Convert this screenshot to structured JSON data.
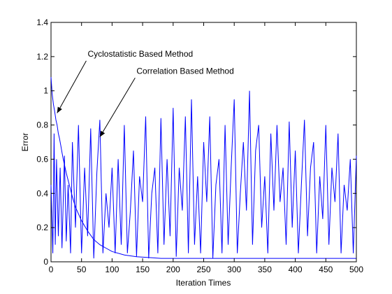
{
  "chart_data": {
    "type": "line",
    "title": "",
    "xlabel": "Iteration Times",
    "ylabel": "Error",
    "xlim": [
      0,
      500
    ],
    "ylim": [
      0,
      1.4
    ],
    "xticks": [
      0,
      50,
      100,
      150,
      200,
      250,
      300,
      350,
      400,
      450,
      500
    ],
    "yticks": [
      0,
      0.2,
      0.4,
      0.6,
      0.8,
      1,
      1.2,
      1.4
    ],
    "grid": false,
    "line_color": "#0000ff",
    "series": [
      {
        "x": [
          0,
          2,
          4,
          6,
          8,
          10,
          12,
          14,
          16,
          18,
          20,
          25,
          30,
          35,
          40,
          45,
          50,
          60,
          70,
          80,
          90,
          100,
          120,
          140,
          160,
          180,
          200,
          230,
          260,
          300,
          350,
          400,
          450,
          500
        ],
        "values": [
          1.08,
          0.98,
          0.92,
          0.88,
          0.83,
          0.8,
          0.75,
          0.72,
          0.68,
          0.64,
          0.6,
          0.52,
          0.45,
          0.38,
          0.32,
          0.28,
          0.24,
          0.18,
          0.13,
          0.1,
          0.08,
          0.06,
          0.04,
          0.03,
          0.025,
          0.02,
          0.02,
          0.02,
          0.02,
          0.02,
          0.02,
          0.02,
          0.02,
          0.02
        ]
      },
      {
        "x": [
          0,
          3,
          5,
          7,
          9,
          12,
          15,
          18,
          22,
          25,
          28,
          32,
          35,
          40,
          45,
          50,
          55,
          60,
          65,
          70,
          75,
          80,
          85,
          90,
          95,
          100,
          105,
          110,
          115,
          120,
          125,
          130,
          135,
          140,
          145,
          150,
          155,
          160,
          165,
          170,
          175,
          180,
          185,
          190,
          195,
          200,
          205,
          210,
          215,
          220,
          225,
          230,
          235,
          240,
          245,
          250,
          255,
          260,
          265,
          270,
          275,
          280,
          285,
          290,
          295,
          300,
          305,
          310,
          315,
          320,
          325,
          330,
          335,
          340,
          345,
          350,
          355,
          360,
          365,
          370,
          375,
          380,
          385,
          390,
          395,
          400,
          405,
          410,
          415,
          420,
          425,
          430,
          435,
          440,
          445,
          450,
          455,
          460,
          465,
          470,
          475,
          480,
          485,
          490,
          495,
          500
        ],
        "values": [
          0.45,
          0.05,
          0.75,
          0.1,
          0.6,
          0.15,
          0.55,
          0.08,
          0.62,
          0.12,
          0.45,
          0.05,
          0.7,
          0.2,
          0.8,
          0.05,
          0.55,
          0.15,
          0.78,
          0.02,
          0.52,
          0.83,
          0.05,
          0.4,
          0.2,
          0.55,
          0.05,
          0.6,
          0.1,
          0.8,
          0.05,
          0.3,
          0.65,
          0.03,
          0.5,
          0.35,
          0.85,
          0.02,
          0.4,
          0.55,
          0.05,
          0.84,
          0.1,
          0.6,
          0.15,
          0.9,
          0.03,
          0.55,
          0.3,
          0.85,
          0.05,
          0.95,
          0.1,
          0.5,
          0.05,
          0.7,
          0.35,
          0.85,
          0.02,
          0.45,
          0.6,
          0.05,
          0.8,
          0.1,
          0.55,
          0.95,
          0.05,
          0.4,
          0.7,
          0.3,
          1.0,
          0.1,
          0.65,
          0.8,
          0.2,
          0.5,
          0.05,
          0.75,
          0.3,
          0.8,
          0.35,
          0.55,
          0.1,
          0.82,
          0.2,
          0.65,
          0.05,
          0.45,
          0.83,
          0.15,
          0.55,
          0.7,
          0.05,
          0.5,
          0.25,
          0.8,
          0.1,
          0.55,
          0.35,
          0.75,
          0.05,
          0.45,
          0.3,
          0.6,
          0.05,
          0.62
        ]
      }
    ],
    "annotations": [
      {
        "text": "Cyclostatistic Based Method",
        "x_text": 60,
        "y_text": 1.2,
        "x_point": 10,
        "y_point": 0.87
      },
      {
        "text": "Correlation Based Method",
        "x_text": 140,
        "y_text": 1.1,
        "x_point": 80,
        "y_point": 0.73
      }
    ]
  }
}
